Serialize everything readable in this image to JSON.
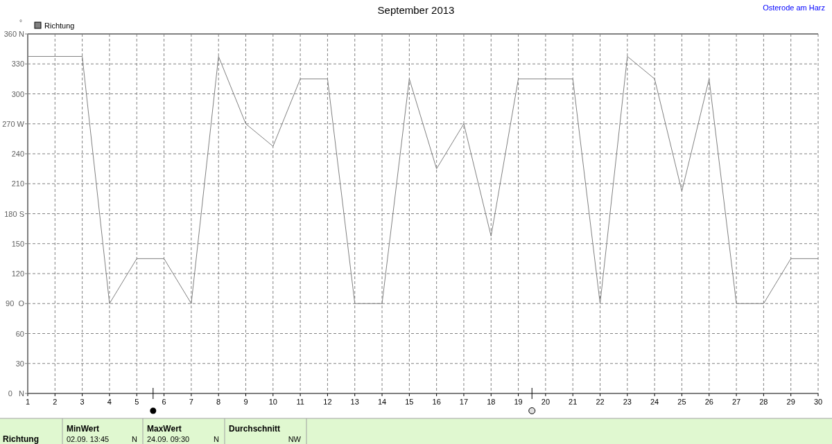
{
  "chart_data": {
    "type": "line",
    "title": "September 2013",
    "subtitle": "Osterode am Harz",
    "ylabel": "°",
    "x": [
      1,
      2,
      3,
      4,
      5,
      6,
      7,
      8,
      9,
      10,
      11,
      12,
      13,
      14,
      15,
      16,
      17,
      18,
      19,
      20,
      21,
      22,
      23,
      24,
      25,
      26,
      27,
      28,
      29,
      30
    ],
    "series": [
      {
        "name": "Richtung",
        "color": "#808080",
        "values": [
          337.5,
          337.5,
          337.5,
          90,
          135,
          135,
          90,
          337.5,
          270,
          247.5,
          315,
          315,
          90,
          90,
          315,
          225,
          270,
          157.5,
          315,
          315,
          315,
          90,
          337.5,
          315,
          202.5,
          315,
          90,
          90,
          135,
          135
        ]
      }
    ],
    "xlim": [
      1,
      30
    ],
    "xticks": [
      1,
      2,
      3,
      4,
      5,
      6,
      7,
      8,
      9,
      10,
      11,
      12,
      13,
      14,
      15,
      16,
      17,
      18,
      19,
      20,
      21,
      22,
      23,
      24,
      25,
      26,
      27,
      28,
      29,
      30
    ],
    "ylim": [
      0,
      360
    ],
    "yticks": [
      {
        "value": 0,
        "label": "0   N"
      },
      30,
      60,
      {
        "value": 90,
        "label": "90  O"
      },
      120,
      150,
      {
        "value": 180,
        "label": "180 S"
      },
      210,
      240,
      {
        "value": 270,
        "label": "270 W"
      },
      300,
      330,
      {
        "value": 360,
        "label": "360 N"
      }
    ],
    "grid": true,
    "legend": "top left",
    "marker": "none",
    "line_style": "solid",
    "annotations": [
      "Richtung",
      "MinWert",
      "02.09.  13:45",
      "N",
      "MaxWert",
      "24.09.  09:30",
      "N",
      "Durchschnitt",
      "NW"
    ]
  }
}
